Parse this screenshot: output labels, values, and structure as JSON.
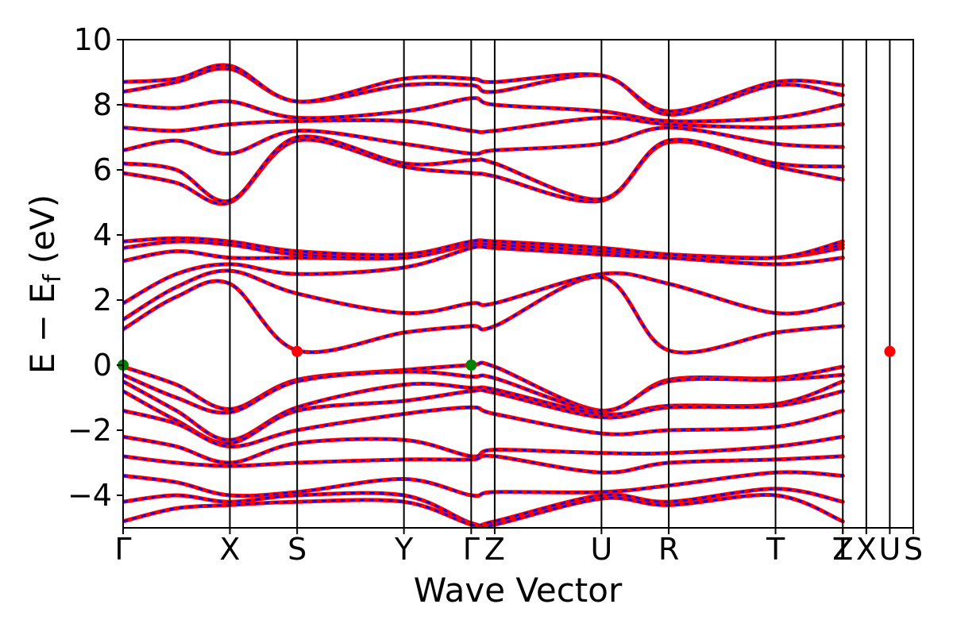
{
  "chart_data": {
    "type": "line",
    "ylabel": "E − E",
    "ylabel_sub": "f",
    "ylabel_unit": " (eV)",
    "xlabel": "Wave Vector",
    "ylim": [
      -5,
      10
    ],
    "yticks": [
      10,
      8,
      6,
      4,
      2,
      0,
      -2,
      -4
    ],
    "yticklabels": [
      "10",
      "8",
      "6",
      "4",
      "2",
      "0",
      "−2",
      "−4"
    ],
    "kpoints": [
      {
        "label": "Γ",
        "x": 0.0
      },
      {
        "label": "X",
        "x": 1.0
      },
      {
        "label": "S",
        "x": 1.63
      },
      {
        "label": "Y",
        "x": 2.63
      },
      {
        "label": "Γ",
        "x": 3.26
      },
      {
        "label": "Z",
        "x": 3.48
      },
      {
        "label": "U",
        "x": 4.48
      },
      {
        "label": "R",
        "x": 5.11
      },
      {
        "label": "T",
        "x": 6.11
      },
      {
        "label": "Z",
        "x": 6.74
      },
      {
        "label": "T",
        "x": 6.74
      },
      {
        "label": "X",
        "x": 6.96
      },
      {
        "label": "U",
        "x": 7.18
      },
      {
        "label": "S",
        "x": 7.4
      }
    ],
    "vlines": [
      1.0,
      1.63,
      2.63,
      3.26,
      3.48,
      4.48,
      5.11,
      6.11,
      6.74,
      6.96,
      7.18
    ],
    "xlim": [
      0,
      7.4
    ],
    "series": [
      {
        "color": "#ff0000",
        "style": "solid"
      },
      {
        "color": "#0000ff",
        "style": "dashed"
      }
    ],
    "bands": [
      [
        [
          0,
          -0.05
        ],
        [
          0.5,
          -0.6
        ],
        [
          1.0,
          -1.35
        ],
        [
          1.63,
          -0.45
        ],
        [
          2.63,
          -0.15
        ],
        [
          3.26,
          0.0
        ],
        [
          3.48,
          -0.05
        ],
        [
          4.48,
          -1.4
        ],
        [
          5.11,
          -0.45
        ],
        [
          6.11,
          -0.4
        ],
        [
          6.74,
          -0.05
        ]
      ],
      [
        [
          0,
          -0.3
        ],
        [
          0.5,
          -1.0
        ],
        [
          1.0,
          -1.45
        ],
        [
          1.63,
          -0.5
        ],
        [
          2.63,
          -0.2
        ],
        [
          3.26,
          -0.35
        ],
        [
          3.48,
          -0.4
        ],
        [
          4.48,
          -1.4
        ],
        [
          5.11,
          -0.5
        ],
        [
          6.11,
          -0.45
        ],
        [
          6.74,
          -0.3
        ]
      ],
      [
        [
          0,
          -0.5
        ],
        [
          0.5,
          -1.4
        ],
        [
          1.0,
          -2.3
        ],
        [
          1.63,
          -1.3
        ],
        [
          2.63,
          -0.6
        ],
        [
          3.26,
          -0.7
        ],
        [
          3.48,
          -0.75
        ],
        [
          4.48,
          -1.5
        ],
        [
          5.11,
          -1.25
        ],
        [
          6.11,
          -1.2
        ],
        [
          6.74,
          -0.5
        ]
      ],
      [
        [
          0,
          -0.8
        ],
        [
          0.5,
          -1.7
        ],
        [
          1.0,
          -2.4
        ],
        [
          1.63,
          -1.4
        ],
        [
          2.63,
          -1.1
        ],
        [
          3.26,
          -0.8
        ],
        [
          3.48,
          -0.85
        ],
        [
          4.48,
          -1.6
        ],
        [
          5.11,
          -1.3
        ],
        [
          6.11,
          -1.25
        ],
        [
          6.74,
          -0.8
        ]
      ],
      [
        [
          0,
          -1.4
        ],
        [
          0.5,
          -1.8
        ],
        [
          1.0,
          -2.5
        ],
        [
          1.63,
          -2.0
        ],
        [
          2.63,
          -1.5
        ],
        [
          3.26,
          -1.3
        ],
        [
          3.48,
          -1.5
        ],
        [
          4.48,
          -2.1
        ],
        [
          5.11,
          -2.0
        ],
        [
          6.11,
          -1.9
        ],
        [
          6.74,
          -1.4
        ]
      ],
      [
        [
          0,
          -2.2
        ],
        [
          0.5,
          -2.5
        ],
        [
          1.0,
          -3.0
        ],
        [
          1.63,
          -2.4
        ],
        [
          2.63,
          -2.3
        ],
        [
          3.26,
          -2.8
        ],
        [
          3.48,
          -2.6
        ],
        [
          4.48,
          -2.7
        ],
        [
          5.11,
          -2.7
        ],
        [
          6.11,
          -2.5
        ],
        [
          6.74,
          -2.2
        ]
      ],
      [
        [
          0,
          -2.8
        ],
        [
          0.5,
          -3.0
        ],
        [
          1.0,
          -3.1
        ],
        [
          1.63,
          -3.0
        ],
        [
          2.63,
          -2.9
        ],
        [
          3.26,
          -2.9
        ],
        [
          3.48,
          -2.8
        ],
        [
          4.48,
          -3.3
        ],
        [
          5.11,
          -3.0
        ],
        [
          6.11,
          -2.9
        ],
        [
          6.74,
          -2.8
        ]
      ],
      [
        [
          0,
          -3.4
        ],
        [
          0.5,
          -3.6
        ],
        [
          1.0,
          -4.0
        ],
        [
          1.63,
          -3.9
        ],
        [
          2.63,
          -3.5
        ],
        [
          3.26,
          -4.0
        ],
        [
          3.48,
          -3.9
        ],
        [
          4.48,
          -3.9
        ],
        [
          5.11,
          -3.7
        ],
        [
          6.11,
          -3.3
        ],
        [
          6.74,
          -3.4
        ]
      ],
      [
        [
          0,
          -4.2
        ],
        [
          0.5,
          -4.0
        ],
        [
          1.0,
          -4.2
        ],
        [
          1.63,
          -4.0
        ],
        [
          2.63,
          -4.0
        ],
        [
          3.26,
          -4.85
        ],
        [
          3.48,
          -4.8
        ],
        [
          4.48,
          -4.0
        ],
        [
          5.11,
          -4.2
        ],
        [
          6.11,
          -3.8
        ],
        [
          6.74,
          -4.2
        ]
      ],
      [
        [
          0,
          -4.8
        ],
        [
          0.5,
          -4.4
        ],
        [
          1.0,
          -4.3
        ],
        [
          1.63,
          -4.2
        ],
        [
          2.63,
          -4.2
        ],
        [
          3.26,
          -4.9
        ],
        [
          3.48,
          -4.9
        ],
        [
          4.48,
          -4.1
        ],
        [
          5.11,
          -4.3
        ],
        [
          6.11,
          -4.0
        ],
        [
          6.74,
          -4.8
        ]
      ],
      [
        [
          0,
          1.1
        ],
        [
          0.5,
          2.1
        ],
        [
          1.0,
          2.5
        ],
        [
          1.63,
          0.45
        ],
        [
          2.63,
          1.0
        ],
        [
          3.26,
          1.2
        ],
        [
          3.48,
          1.2
        ],
        [
          4.48,
          2.7
        ],
        [
          5.11,
          0.45
        ],
        [
          6.11,
          1.0
        ],
        [
          6.74,
          1.2
        ]
      ],
      [
        [
          0,
          1.4
        ],
        [
          0.5,
          2.4
        ],
        [
          1.0,
          2.9
        ],
        [
          1.63,
          2.2
        ],
        [
          2.63,
          1.6
        ],
        [
          3.26,
          1.9
        ],
        [
          3.48,
          1.9
        ],
        [
          4.48,
          2.8
        ],
        [
          5.11,
          2.5
        ],
        [
          6.11,
          1.6
        ],
        [
          6.74,
          1.9
        ]
      ],
      [
        [
          0,
          1.9
        ],
        [
          0.5,
          2.8
        ],
        [
          1.0,
          3.1
        ],
        [
          1.63,
          2.8
        ],
        [
          2.63,
          3.0
        ],
        [
          3.26,
          3.6
        ],
        [
          3.48,
          3.6
        ],
        [
          4.48,
          3.4
        ],
        [
          5.11,
          3.3
        ],
        [
          6.11,
          3.1
        ],
        [
          6.74,
          3.3
        ]
      ],
      [
        [
          0,
          3.2
        ],
        [
          0.5,
          3.5
        ],
        [
          1.0,
          3.3
        ],
        [
          1.63,
          3.3
        ],
        [
          2.63,
          3.3
        ],
        [
          3.26,
          3.7
        ],
        [
          3.48,
          3.7
        ],
        [
          4.48,
          3.5
        ],
        [
          5.11,
          3.4
        ],
        [
          6.11,
          3.3
        ],
        [
          6.74,
          3.6
        ]
      ],
      [
        [
          0,
          3.6
        ],
        [
          0.5,
          3.8
        ],
        [
          1.0,
          3.7
        ],
        [
          1.63,
          3.4
        ],
        [
          2.63,
          3.3
        ],
        [
          3.26,
          3.75
        ],
        [
          3.48,
          3.8
        ],
        [
          4.48,
          3.6
        ],
        [
          5.11,
          3.4
        ],
        [
          6.11,
          3.3
        ],
        [
          6.74,
          3.7
        ]
      ],
      [
        [
          0,
          3.8
        ],
        [
          0.5,
          3.9
        ],
        [
          1.0,
          3.8
        ],
        [
          1.63,
          3.5
        ],
        [
          2.63,
          3.4
        ],
        [
          3.26,
          3.8
        ],
        [
          3.48,
          3.8
        ],
        [
          4.48,
          3.6
        ],
        [
          5.11,
          3.4
        ],
        [
          6.11,
          3.3
        ],
        [
          6.74,
          3.8
        ]
      ],
      [
        [
          0,
          5.9
        ],
        [
          0.5,
          5.6
        ],
        [
          1.0,
          5.0
        ],
        [
          1.63,
          6.9
        ],
        [
          2.63,
          6.1
        ],
        [
          3.26,
          5.9
        ],
        [
          3.48,
          5.8
        ],
        [
          4.48,
          5.05
        ],
        [
          5.11,
          6.85
        ],
        [
          6.11,
          6.1
        ],
        [
          6.74,
          5.7
        ]
      ],
      [
        [
          0,
          6.2
        ],
        [
          0.5,
          6.0
        ],
        [
          1.0,
          5.05
        ],
        [
          1.63,
          7.0
        ],
        [
          2.63,
          6.2
        ],
        [
          3.26,
          6.3
        ],
        [
          3.48,
          6.2
        ],
        [
          4.48,
          5.1
        ],
        [
          5.11,
          6.9
        ],
        [
          6.11,
          6.2
        ],
        [
          6.74,
          6.1
        ]
      ],
      [
        [
          0,
          6.6
        ],
        [
          0.5,
          6.9
        ],
        [
          1.0,
          6.5
        ],
        [
          1.63,
          7.2
        ],
        [
          2.63,
          6.8
        ],
        [
          3.26,
          6.5
        ],
        [
          3.48,
          6.6
        ],
        [
          4.48,
          6.8
        ],
        [
          5.11,
          7.3
        ],
        [
          6.11,
          6.8
        ],
        [
          6.74,
          6.7
        ]
      ],
      [
        [
          0,
          7.3
        ],
        [
          0.5,
          7.2
        ],
        [
          1.0,
          7.4
        ],
        [
          1.63,
          7.5
        ],
        [
          2.63,
          7.5
        ],
        [
          3.26,
          7.2
        ],
        [
          3.48,
          7.2
        ],
        [
          4.48,
          7.6
        ],
        [
          5.11,
          7.4
        ],
        [
          6.11,
          7.3
        ],
        [
          6.74,
          7.4
        ]
      ],
      [
        [
          0,
          8.0
        ],
        [
          0.5,
          7.9
        ],
        [
          1.0,
          8.1
        ],
        [
          1.63,
          7.6
        ],
        [
          2.63,
          7.8
        ],
        [
          3.26,
          8.2
        ],
        [
          3.48,
          8.0
        ],
        [
          4.48,
          7.8
        ],
        [
          5.11,
          7.5
        ],
        [
          6.11,
          7.6
        ],
        [
          6.74,
          8.0
        ]
      ],
      [
        [
          0,
          8.4
        ],
        [
          0.5,
          8.7
        ],
        [
          1.0,
          9.1
        ],
        [
          1.63,
          8.1
        ],
        [
          2.63,
          8.6
        ],
        [
          3.26,
          8.6
        ],
        [
          3.48,
          8.4
        ],
        [
          4.48,
          8.9
        ],
        [
          5.11,
          7.7
        ],
        [
          6.11,
          8.6
        ],
        [
          6.74,
          8.3
        ]
      ],
      [
        [
          0,
          8.7
        ],
        [
          0.5,
          8.8
        ],
        [
          1.0,
          9.2
        ],
        [
          1.63,
          8.1
        ],
        [
          2.63,
          8.8
        ],
        [
          3.26,
          8.8
        ],
        [
          3.48,
          8.7
        ],
        [
          4.48,
          8.9
        ],
        [
          5.11,
          7.8
        ],
        [
          6.11,
          8.7
        ],
        [
          6.74,
          8.6
        ]
      ]
    ],
    "markers": [
      {
        "x": 0.0,
        "y": 0.0,
        "color": "#008000"
      },
      {
        "x": 3.26,
        "y": 0.0,
        "color": "#008000"
      },
      {
        "x": 1.63,
        "y": 0.42,
        "color": "#ff0000"
      },
      {
        "x": 7.18,
        "y": 0.42,
        "color": "#ff0000"
      }
    ]
  }
}
